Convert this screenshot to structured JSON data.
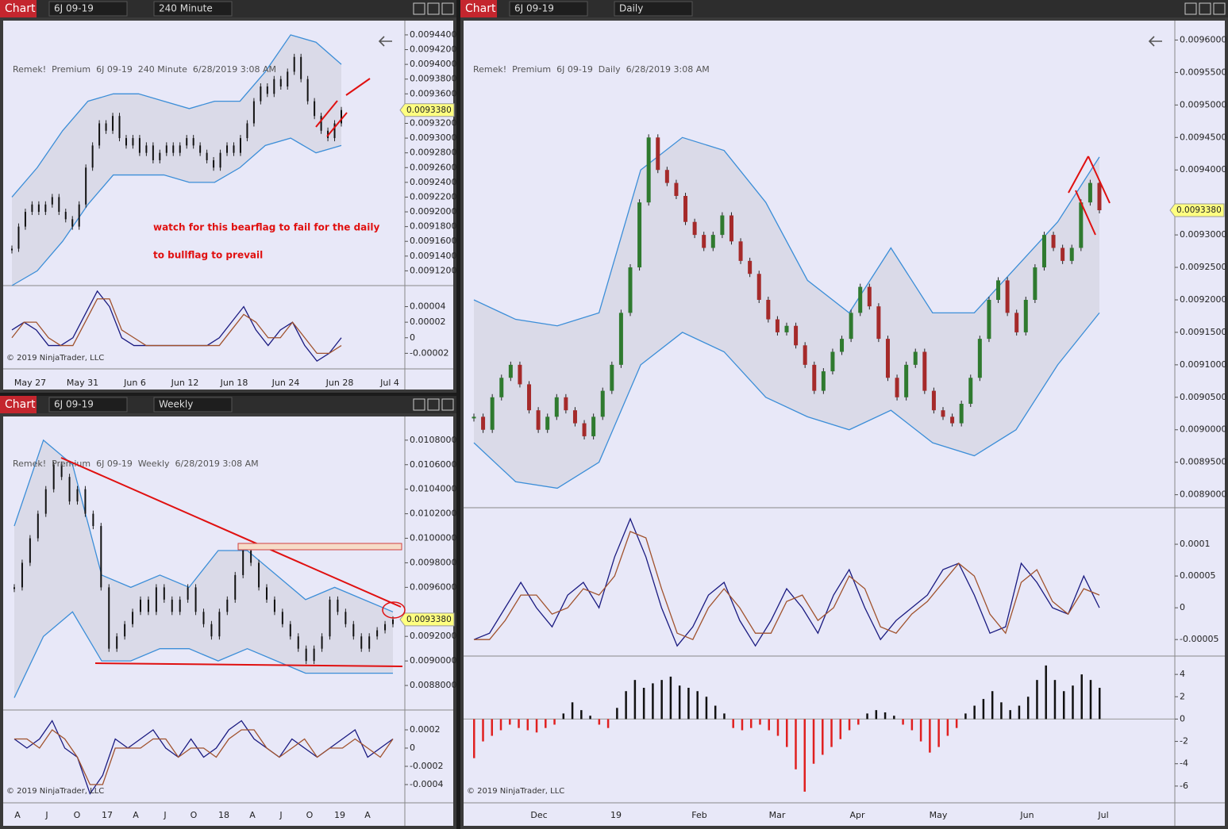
{
  "windows": [
    {
      "toolbar": {
        "tab": "Chart",
        "instrument": "6J 09-19",
        "interval": "240 Minute"
      },
      "header": "Remek!  Premium  6J 09-19  240 Minute  6/28/2019 3:08 AM",
      "copyright": "© 2019 NinjaTrader, LLC",
      "annotations": [
        "watch for this bearflag to fail for the daily",
        "to bullflag to prevail"
      ],
      "last_price": {
        "value": 0.009338,
        "label": "0.0093380"
      },
      "price": {
        "ylim": [
          0.0091,
          0.009455
        ],
        "yticks": [
          {
            "value": 0.00944,
            "label": "0.0094400"
          },
          {
            "value": 0.00942,
            "label": "0.0094200"
          },
          {
            "value": 0.0094,
            "label": "0.0094000"
          },
          {
            "value": 0.00938,
            "label": "0.0093800"
          },
          {
            "value": 0.00936,
            "label": "0.0093600"
          },
          {
            "value": 0.00932,
            "label": "0.0093200"
          },
          {
            "value": 0.0093,
            "label": "0.0093000"
          },
          {
            "value": 0.00928,
            "label": "0.0092800"
          },
          {
            "value": 0.00926,
            "label": "0.0092600"
          },
          {
            "value": 0.00924,
            "label": "0.0092400"
          },
          {
            "value": 0.00922,
            "label": "0.0092200"
          },
          {
            "value": 0.0092,
            "label": "0.0092000"
          },
          {
            "value": 0.00918,
            "label": "0.0091800"
          },
          {
            "value": 0.00916,
            "label": "0.0091600"
          },
          {
            "value": 0.00914,
            "label": "0.0091400"
          },
          {
            "value": 0.00912,
            "label": "0.0091200"
          }
        ],
        "closes": [
          0.00915,
          0.00918,
          0.0092,
          0.00921,
          0.0092,
          0.00921,
          0.00922,
          0.0092,
          0.00919,
          0.00918,
          0.00921,
          0.00926,
          0.00929,
          0.00932,
          0.00931,
          0.00933,
          0.0093,
          0.00929,
          0.0093,
          0.00928,
          0.00929,
          0.00927,
          0.00928,
          0.00929,
          0.00928,
          0.00929,
          0.0093,
          0.00929,
          0.00928,
          0.00927,
          0.00926,
          0.00928,
          0.00929,
          0.00928,
          0.0093,
          0.00932,
          0.00935,
          0.00937,
          0.00936,
          0.00938,
          0.00937,
          0.00939,
          0.00941,
          0.00938,
          0.00935,
          0.00933,
          0.00931,
          0.0093,
          0.00932,
          0.009338
        ],
        "upper": [
          0.00922,
          0.00926,
          0.00931,
          0.00935,
          0.00936,
          0.00936,
          0.00935,
          0.00934,
          0.00935,
          0.00935,
          0.00939,
          0.00944,
          0.00943,
          0.0094
        ],
        "lower": [
          0.0091,
          0.00912,
          0.00916,
          0.00921,
          0.00925,
          0.00925,
          0.00925,
          0.00924,
          0.00924,
          0.00926,
          0.00929,
          0.0093,
          0.00928,
          0.00929
        ]
      },
      "osc": {
        "ylim": [
          -4e-05,
          6.5e-05
        ],
        "yticks": [
          4e-05,
          2e-05,
          0,
          -2e-05
        ],
        "lines": [
          {
            "color": "#1a1a80",
            "values": [
              1e-05,
              2e-05,
              1e-05,
              -1e-05,
              -1e-05,
              0,
              3e-05,
              6e-05,
              4e-05,
              0,
              -1e-05,
              -1e-05,
              -1e-05,
              -1e-05,
              -1e-05,
              -1e-05,
              -1e-05,
              0,
              2e-05,
              4e-05,
              1e-05,
              -1e-05,
              1e-05,
              2e-05,
              -1e-05,
              -3e-05,
              -2e-05,
              0
            ]
          },
          {
            "color": "#a0522d",
            "values": [
              0,
              2e-05,
              2e-05,
              0,
              -1e-05,
              -1e-05,
              2e-05,
              5e-05,
              5e-05,
              1e-05,
              0,
              -1e-05,
              -1e-05,
              -1e-05,
              -1e-05,
              -1e-05,
              -1e-05,
              -1e-05,
              1e-05,
              3e-05,
              2e-05,
              0,
              0,
              2e-05,
              0,
              -2e-05,
              -2e-05,
              -1e-05
            ]
          }
        ]
      },
      "xlabels": [
        "May 27",
        "May 31",
        "Jun 6",
        "Jun 12",
        "Jun 18",
        "Jun 24",
        "Jun 28",
        "Jul 4"
      ]
    },
    {
      "toolbar": {
        "tab": "Chart",
        "instrument": "6J 09-19",
        "interval": "Weekly"
      },
      "header": "Remek!  Premium  6J 09-19  Weekly  6/28/2019 3:08 AM",
      "copyright": "© 2019 NinjaTrader, LLC",
      "last_price": {
        "value": 0.009338,
        "label": "0.0093380"
      },
      "price": {
        "ylim": [
          0.0086,
          0.01098
        ],
        "yticks": [
          {
            "value": 0.0108,
            "label": "0.0108000"
          },
          {
            "value": 0.0106,
            "label": "0.0106000"
          },
          {
            "value": 0.0104,
            "label": "0.0104000"
          },
          {
            "value": 0.0102,
            "label": "0.0102000"
          },
          {
            "value": 0.01,
            "label": "0.0100000"
          },
          {
            "value": 0.0098,
            "label": "0.0098000"
          },
          {
            "value": 0.0096,
            "label": "0.0096000"
          },
          {
            "value": 0.0092,
            "label": "0.0092000"
          },
          {
            "value": 0.009,
            "label": "0.0090000"
          },
          {
            "value": 0.0088,
            "label": "0.0088000"
          }
        ],
        "closes": [
          0.0096,
          0.0098,
          0.01,
          0.0102,
          0.0104,
          0.0106,
          0.0105,
          0.0103,
          0.0104,
          0.0102,
          0.0101,
          0.0096,
          0.0091,
          0.0092,
          0.0093,
          0.0094,
          0.0095,
          0.0094,
          0.0096,
          0.0095,
          0.0094,
          0.0095,
          0.0096,
          0.0094,
          0.0093,
          0.0092,
          0.0094,
          0.0095,
          0.0097,
          0.0099,
          0.0098,
          0.0096,
          0.0095,
          0.0094,
          0.0093,
          0.0092,
          0.0091,
          0.009,
          0.0091,
          0.0092,
          0.0095,
          0.0094,
          0.0093,
          0.0092,
          0.0091,
          0.0092,
          0.00925,
          0.0093,
          0.009338
        ],
        "upper": [
          0.0101,
          0.0108,
          0.0106,
          0.0097,
          0.0096,
          0.0097,
          0.0096,
          0.0099,
          0.0099,
          0.0097,
          0.0095,
          0.0096,
          0.0095,
          0.0094
        ],
        "lower": [
          0.0087,
          0.0092,
          0.0094,
          0.009,
          0.009,
          0.0091,
          0.0091,
          0.009,
          0.0091,
          0.009,
          0.0089,
          0.0089,
          0.0089,
          0.0089
        ]
      },
      "osc": {
        "ylim": [
          -0.0006,
          0.0004
        ],
        "yticks": [
          0.0002,
          0,
          -0.0002,
          -0.0004
        ],
        "lines": [
          {
            "color": "#1a1a80",
            "values": [
              0.0001,
              0,
              0.0001,
              0.0003,
              0,
              -0.0001,
              -0.0005,
              -0.0003,
              0.0001,
              0,
              0.0001,
              0.0002,
              0,
              -0.0001,
              0.0001,
              -0.0001,
              0,
              0.0002,
              0.0003,
              0.0001,
              0,
              -0.0001,
              0.0001,
              0,
              -0.0001,
              0,
              0.0001,
              0.0002,
              -0.0001,
              0,
              0.0001
            ]
          },
          {
            "color": "#a0522d",
            "values": [
              0.0001,
              0.0001,
              0,
              0.0002,
              0.0001,
              -0.0001,
              -0.0004,
              -0.0004,
              0,
              0,
              0,
              0.0001,
              0.0001,
              -0.0001,
              0,
              0,
              -0.0001,
              0.0001,
              0.0002,
              0.0002,
              0,
              -0.0001,
              0,
              0.0001,
              -0.0001,
              0,
              0,
              0.0001,
              0,
              -0.0001,
              0.0001
            ]
          }
        ]
      },
      "xlabels": [
        "A",
        "J",
        "O",
        "17",
        "A",
        "J",
        "O",
        "18",
        "A",
        "J",
        "O",
        "19",
        "A"
      ]
    },
    {
      "toolbar": {
        "tab": "Chart",
        "instrument": "6J 09-19",
        "interval": "Daily"
      },
      "header": "Remek!  Premium  6J 09-19  Daily  6/28/2019 3:08 AM",
      "copyright": "© 2019 NinjaTrader, LLC",
      "last_price": {
        "value": 0.009338,
        "label": "0.0093380"
      },
      "price": {
        "ylim": [
          0.00888,
          0.009625
        ],
        "yticks": [
          {
            "value": 0.0096,
            "label": "0.0096000"
          },
          {
            "value": 0.00955,
            "label": "0.0095500"
          },
          {
            "value": 0.0095,
            "label": "0.0095000"
          },
          {
            "value": 0.00945,
            "label": "0.0094500"
          },
          {
            "value": 0.0094,
            "label": "0.0094000"
          },
          {
            "value": 0.0093,
            "label": "0.0093000"
          },
          {
            "value": 0.00925,
            "label": "0.0092500"
          },
          {
            "value": 0.0092,
            "label": "0.0092000"
          },
          {
            "value": 0.00915,
            "label": "0.0091500"
          },
          {
            "value": 0.0091,
            "label": "0.0091000"
          },
          {
            "value": 0.00905,
            "label": "0.0090500"
          },
          {
            "value": 0.009,
            "label": "0.0090000"
          },
          {
            "value": 0.00895,
            "label": "0.0089500"
          },
          {
            "value": 0.0089,
            "label": "0.0089000"
          }
        ],
        "closes": [
          0.00902,
          0.009,
          0.00905,
          0.00908,
          0.0091,
          0.00907,
          0.00903,
          0.009,
          0.00902,
          0.00905,
          0.00903,
          0.00901,
          0.00899,
          0.00902,
          0.00906,
          0.0091,
          0.00918,
          0.00925,
          0.00935,
          0.00945,
          0.0094,
          0.00938,
          0.00936,
          0.00932,
          0.0093,
          0.00928,
          0.0093,
          0.00933,
          0.00929,
          0.00926,
          0.00924,
          0.0092,
          0.00917,
          0.00915,
          0.00916,
          0.00913,
          0.0091,
          0.00906,
          0.00909,
          0.00912,
          0.00914,
          0.00918,
          0.00922,
          0.00919,
          0.00914,
          0.00908,
          0.00905,
          0.0091,
          0.00912,
          0.00906,
          0.00903,
          0.00902,
          0.00901,
          0.00904,
          0.00908,
          0.00914,
          0.0092,
          0.00923,
          0.00918,
          0.00915,
          0.0092,
          0.00925,
          0.0093,
          0.00928,
          0.00926,
          0.00928,
          0.00935,
          0.00938,
          0.009338
        ],
        "upper": [
          0.0092,
          0.00917,
          0.00916,
          0.00918,
          0.0094,
          0.00945,
          0.00943,
          0.00935,
          0.00923,
          0.00918,
          0.00928,
          0.00918,
          0.00918,
          0.00925,
          0.00932,
          0.00942
        ],
        "lower": [
          0.00898,
          0.00892,
          0.00891,
          0.00895,
          0.0091,
          0.00915,
          0.00912,
          0.00905,
          0.00902,
          0.009,
          0.00903,
          0.00898,
          0.00896,
          0.009,
          0.0091,
          0.00918
        ]
      },
      "osc": {
        "ylim": [
          -7.6e-05,
          0.000155
        ],
        "yticks": [
          0.0001,
          5e-05,
          0,
          -5e-05
        ],
        "lines": [
          {
            "color": "#1a1a80",
            "values": [
              -5e-05,
              -4e-05,
              0,
              4e-05,
              0,
              -3e-05,
              2e-05,
              4e-05,
              0,
              8e-05,
              0.00014,
              8e-05,
              0,
              -6e-05,
              -3e-05,
              2e-05,
              4e-05,
              -2e-05,
              -6e-05,
              -2e-05,
              3e-05,
              0,
              -4e-05,
              2e-05,
              6e-05,
              0,
              -5e-05,
              -2e-05,
              0,
              2e-05,
              6e-05,
              7e-05,
              2e-05,
              -4e-05,
              -3e-05,
              7e-05,
              4e-05,
              0,
              -1e-05,
              5e-05,
              0
            ]
          },
          {
            "color": "#a0522d",
            "values": [
              -5e-05,
              -5e-05,
              -2e-05,
              2e-05,
              2e-05,
              -1e-05,
              0,
              3e-05,
              2e-05,
              5e-05,
              0.00012,
              0.00011,
              3e-05,
              -4e-05,
              -5e-05,
              0,
              3e-05,
              0,
              -4e-05,
              -4e-05,
              1e-05,
              2e-05,
              -2e-05,
              0,
              5e-05,
              3e-05,
              -3e-05,
              -4e-05,
              -1e-05,
              1e-05,
              4e-05,
              7e-05,
              5e-05,
              -1e-05,
              -4e-05,
              4e-05,
              6e-05,
              1e-05,
              -1e-05,
              3e-05,
              2e-05
            ]
          }
        ]
      },
      "hist": {
        "ylim": [
          -7.5,
          5.5
        ],
        "yticks": [
          4,
          2,
          0,
          -2,
          -4,
          -6
        ],
        "values": [
          -3.5,
          -2,
          -1.5,
          -1,
          -0.5,
          -0.8,
          -1,
          -1.2,
          -0.8,
          -0.5,
          0.5,
          1.5,
          0.8,
          0.3,
          -0.5,
          -0.8,
          1,
          2.5,
          3.5,
          2.8,
          3.2,
          3.5,
          3.8,
          3,
          2.8,
          2.5,
          2,
          1.2,
          0.5,
          -0.8,
          -1,
          -0.8,
          -0.5,
          -1,
          -1.5,
          -2.5,
          -4.5,
          -6.5,
          -4,
          -3.2,
          -2.5,
          -1.8,
          -1,
          -0.5,
          0.5,
          0.8,
          0.6,
          0.3,
          -0.5,
          -1,
          -2,
          -3,
          -2.5,
          -1.5,
          -0.8,
          0.5,
          1.2,
          1.8,
          2.5,
          1.5,
          0.8,
          1.2,
          2,
          3.5,
          4.8,
          3.5,
          2.5,
          3,
          4,
          3.5,
          2.8
        ]
      },
      "xlabels": [
        "Dec",
        "19",
        "Feb",
        "Mar",
        "Apr",
        "May",
        "Jun",
        "Jul"
      ]
    }
  ]
}
